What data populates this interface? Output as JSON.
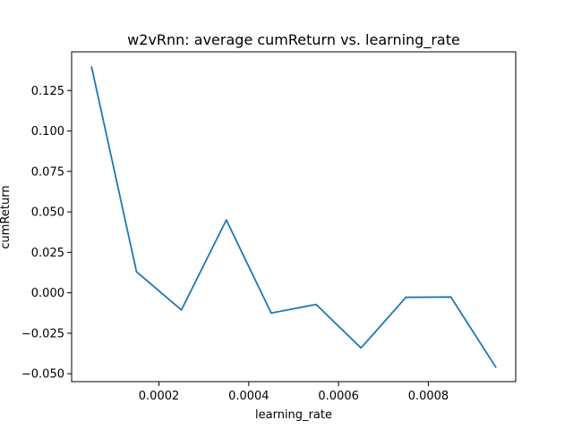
{
  "chart_data": {
    "type": "line",
    "title": "w2vRnn: average cumReturn vs. learning_rate",
    "xlabel": "learning_rate",
    "ylabel": "cumReturn",
    "xlim": [
      5.5e-06,
      0.0009945
    ],
    "ylim": [
      -0.0549,
      0.1489
    ],
    "x_ticks": [
      0.0002,
      0.0004,
      0.0006,
      0.0008
    ],
    "x_tick_labels": [
      "0.0002",
      "0.0004",
      "0.0006",
      "0.0008"
    ],
    "y_ticks": [
      -0.05,
      -0.025,
      0.0,
      0.025,
      0.05,
      0.075,
      0.1,
      0.125
    ],
    "y_tick_labels": [
      "−0.050",
      "−0.025",
      "0.000",
      "0.025",
      "0.050",
      "0.075",
      "0.100",
      "0.125"
    ],
    "grid": false,
    "line_color": "#1f77b4",
    "series": [
      {
        "x": [
          5e-05,
          0.00015,
          0.00025,
          0.00035,
          0.00045,
          0.00055,
          0.00065,
          0.00075,
          0.00085,
          0.00095
        ],
        "values": [
          0.1395,
          0.013,
          -0.0106,
          0.045,
          -0.0125,
          -0.0072,
          -0.0341,
          -0.0028,
          -0.0026,
          -0.0459
        ]
      }
    ]
  }
}
